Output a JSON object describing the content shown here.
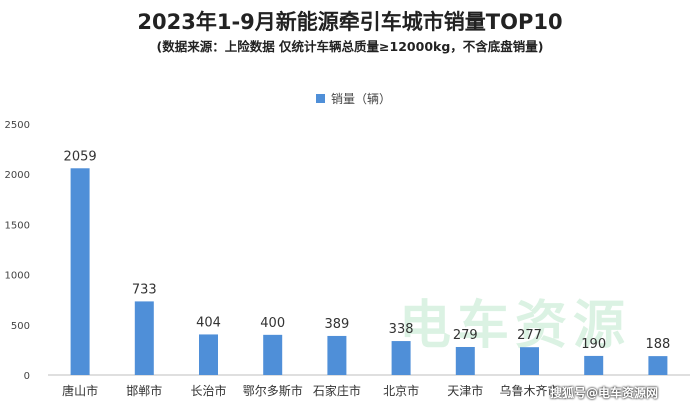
{
  "chart_data": {
    "type": "bar",
    "title": "2023年1-9月新能源牵引车城市销量TOP10",
    "subtitle": "(数据来源：上险数据 仅统计车辆总质量≥12000kg，不含底盘销量)",
    "categories": [
      "唐山市",
      "邯郸市",
      "长治市",
      "鄂尔多斯市",
      "石家庄市",
      "北京市",
      "天津市",
      "乌鲁木齐市",
      "",
      ""
    ],
    "series": [
      {
        "name": "销量（辆）",
        "values": [
          2059,
          733,
          404,
          400,
          389,
          338,
          279,
          277,
          190,
          188
        ]
      }
    ],
    "ylim": [
      0,
      2500
    ],
    "yticks": [
      0,
      500,
      1000,
      1500,
      2000,
      2500
    ],
    "legend_position": "top-center",
    "grid": false,
    "bar_color": "#4f8fd8"
  },
  "watermark_text": "电车资源",
  "source_tag": "搜狐号@电车资源网"
}
